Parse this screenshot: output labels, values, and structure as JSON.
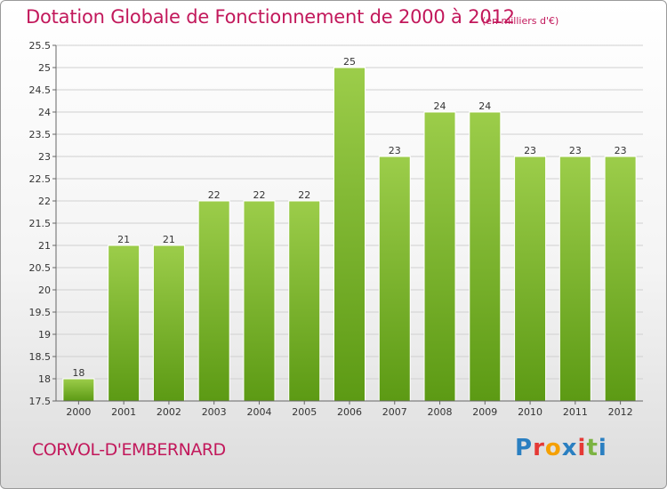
{
  "header": {
    "title": "Dotation Globale de Fonctionnement de 2000 à 2012",
    "unit_note": "(en milliers d'€)"
  },
  "footer": {
    "place": "CORVOL-D'EMBERNARD",
    "logo_letters": [
      "P",
      "r",
      "o",
      "x",
      "i",
      "t",
      "i"
    ],
    "logo_colors": [
      "#2a7fc1",
      "#e53935",
      "#f5a000",
      "#2a7fc1",
      "#e53935",
      "#7cb342",
      "#2a7fc1"
    ]
  },
  "colors": {
    "title": "#c2185b",
    "bar_top": "#9ccd4a",
    "bar_bottom": "#5c9a14"
  },
  "chart_data": {
    "type": "bar",
    "categories": [
      "2000",
      "2001",
      "2002",
      "2003",
      "2004",
      "2005",
      "2006",
      "2007",
      "2008",
      "2009",
      "2010",
      "2011",
      "2012"
    ],
    "values": [
      18,
      21,
      21,
      22,
      22,
      22,
      25,
      23,
      24,
      24,
      23,
      23,
      23
    ],
    "value_labels": [
      "18",
      "21",
      "21",
      "22",
      "22",
      "22",
      "25",
      "23",
      "24",
      "24",
      "23",
      "23",
      "23"
    ],
    "ylim": [
      17.5,
      25.5
    ],
    "yticks": [
      "17.5",
      "18",
      "18.5",
      "19",
      "19.5",
      "20",
      "20.5",
      "21",
      "21.5",
      "22",
      "22.5",
      "23",
      "23.5",
      "24",
      "24.5",
      "25",
      "25.5"
    ],
    "grid": true
  }
}
